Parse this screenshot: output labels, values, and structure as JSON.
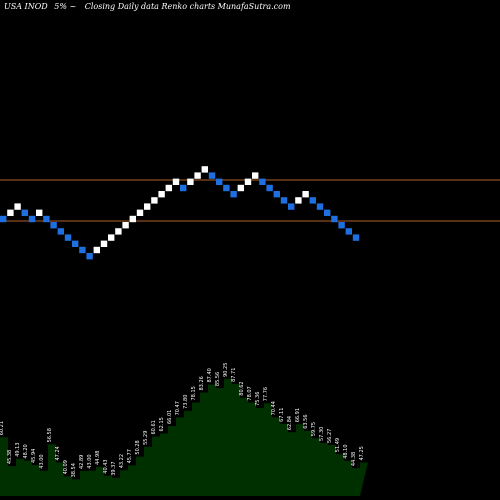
{
  "header": {
    "ticker": "USA INOD",
    "change": "5% ~",
    "caption": "Closing Daily data  Renko  charts MunafaSutra.com"
  },
  "colors": {
    "background": "#000000",
    "up_brick": "#ffffff",
    "down_brick": "#1e6fe0",
    "level_line": "#b0622a",
    "volume_fill": "#003000"
  },
  "chart_data": {
    "type": "renko",
    "brick_direction": [
      "down",
      "up",
      "up",
      "down",
      "down",
      "up",
      "down",
      "down",
      "down",
      "down",
      "down",
      "down",
      "down",
      "up",
      "up",
      "up",
      "up",
      "up",
      "up",
      "up",
      "up",
      "up",
      "up",
      "up",
      "up",
      "down",
      "up",
      "up",
      "up",
      "down",
      "down",
      "down",
      "down",
      "up",
      "up",
      "up",
      "down",
      "down",
      "down",
      "down",
      "down",
      "up",
      "up",
      "down",
      "down",
      "down",
      "down",
      "down",
      "down",
      "down"
    ],
    "horizontal_levels": [
      "upper",
      "lower"
    ],
    "volume_labels": [
      "60.21",
      "45.38",
      "49.13",
      "48.20",
      "45.94",
      "43.00",
      "56.58",
      "47.24",
      "40.09",
      "38.54",
      "42.89",
      "43.00",
      "44.98",
      "40.43",
      "39.37",
      "43.22",
      "45.77",
      "50.28",
      "55.29",
      "60.61",
      "62.15",
      "66.01",
      "70.47",
      "73.80",
      "78.15",
      "83.26",
      "87.40",
      "85.56",
      "90.25",
      "87.71",
      "80.62",
      "78.07",
      "75.36",
      "77.76",
      "70.44",
      "67.11",
      "62.84",
      "66.91",
      "63.56",
      "59.75",
      "57.30",
      "56.27",
      "51.49",
      "48.10",
      "44.38",
      "47.25"
    ]
  }
}
